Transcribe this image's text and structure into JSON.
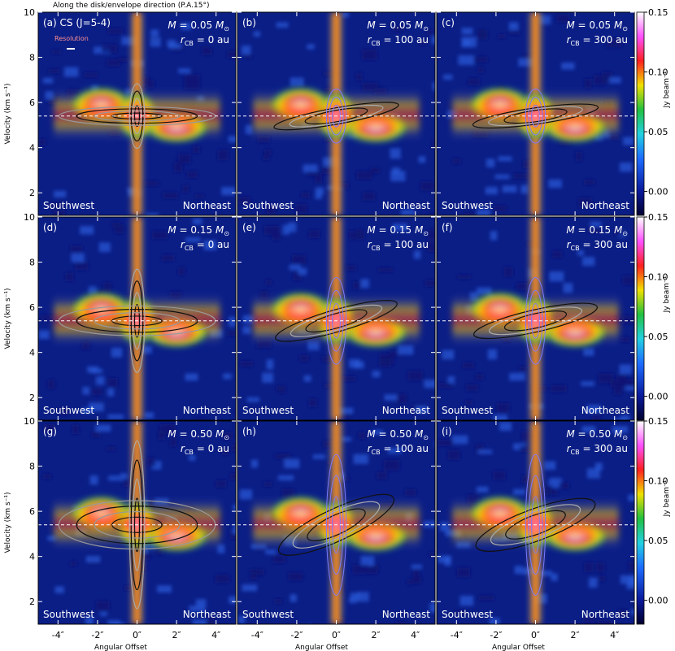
{
  "header": "Along the disk/envelope direction (P.A.15°)",
  "x_axis_label": "Angular Offset",
  "y_axis_label": "Velocity (km s⁻¹)",
  "colorbar_label": "Jy beam⁻¹",
  "resolution_label": "Resolution",
  "line_label": "(a) CS (J=5-4)",
  "x_tick_labels": [
    "-4″",
    "-2″",
    "0″",
    "2″",
    "4″"
  ],
  "y_tick_labels": [
    "2",
    "4",
    "6",
    "8",
    "10"
  ],
  "colorbar_tick_labels": [
    "0.15",
    "0.10",
    "0.05",
    "0.00"
  ],
  "corner_labels": {
    "left": "Southwest",
    "right": "Northeast"
  },
  "colors": {
    "accent_contour": "#7a7aff",
    "systemic_line": "#ffffff"
  },
  "chart_data": {
    "type": "heatmap",
    "xlim": [
      -5,
      5
    ],
    "ylim": [
      1,
      10
    ],
    "clim": [
      -0.02,
      0.15
    ],
    "systemic_velocity": 5.4,
    "colormap": "jet-like (dark navy → blue → cyan → green → yellow → red → magenta → white)",
    "panels": [
      {
        "label": "(a)",
        "M": "0.05",
        "r_cb": "0"
      },
      {
        "label": "(b)",
        "M": "0.05",
        "r_cb": "100"
      },
      {
        "label": "(c)",
        "M": "0.05",
        "r_cb": "300"
      },
      {
        "label": "(d)",
        "M": "0.15",
        "r_cb": "0"
      },
      {
        "label": "(e)",
        "M": "0.15",
        "r_cb": "100"
      },
      {
        "label": "(f)",
        "M": "0.15",
        "r_cb": "300"
      },
      {
        "label": "(g)",
        "M": "0.50",
        "r_cb": "0"
      },
      {
        "label": "(h)",
        "M": "0.50",
        "r_cb": "100"
      },
      {
        "label": "(i)",
        "M": "0.50",
        "r_cb": "300"
      }
    ]
  }
}
